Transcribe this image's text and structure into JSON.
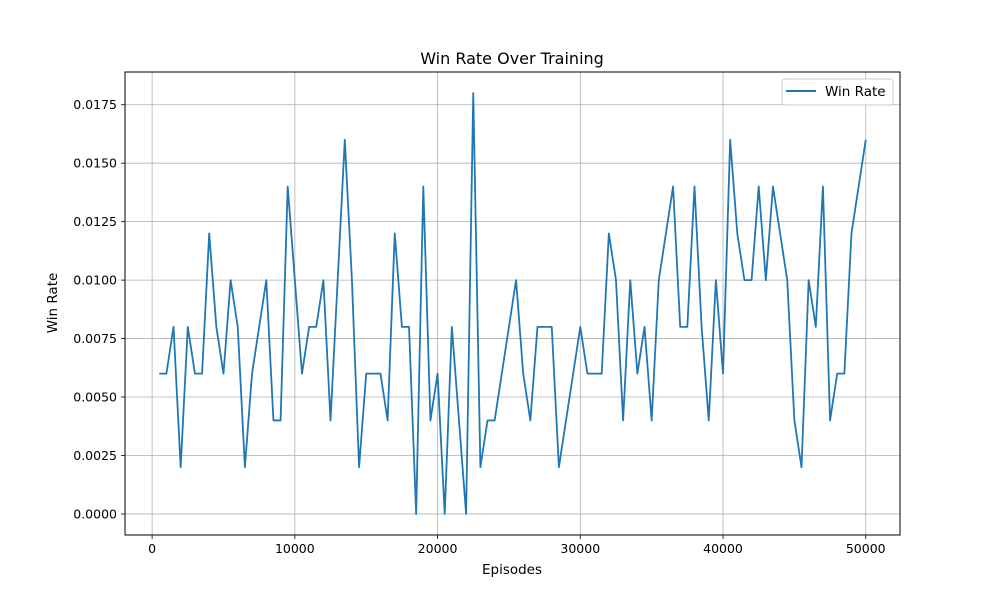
{
  "chart_data": {
    "type": "line",
    "title": "Win Rate Over Training",
    "xlabel": "Episodes",
    "ylabel": "Win Rate",
    "xlim": [
      -1900,
      52400
    ],
    "ylim": [
      -0.0009,
      0.0189
    ],
    "xticks": [
      0,
      10000,
      20000,
      30000,
      40000,
      50000
    ],
    "xtick_labels": [
      "0",
      "10000",
      "20000",
      "30000",
      "40000",
      "50000"
    ],
    "yticks": [
      0.0,
      0.0025,
      0.005,
      0.0075,
      0.01,
      0.0125,
      0.015,
      0.0175
    ],
    "ytick_labels": [
      "0.0000",
      "0.0025",
      "0.0050",
      "0.0075",
      "0.0100",
      "0.0125",
      "0.0150",
      "0.0175"
    ],
    "grid": true,
    "legend_position": "top-right",
    "series": [
      {
        "name": "Win Rate",
        "color": "#1f77b4",
        "x": [
          500,
          1000,
          1500,
          2000,
          2500,
          3000,
          3500,
          4000,
          4500,
          5000,
          5500,
          6000,
          6500,
          7000,
          7500,
          8000,
          8500,
          9000,
          9500,
          10000,
          10500,
          11000,
          11500,
          12000,
          12500,
          13000,
          13500,
          14000,
          14500,
          15000,
          15500,
          16000,
          16500,
          17000,
          17500,
          18000,
          18500,
          19000,
          19500,
          20000,
          20500,
          21000,
          21500,
          22000,
          22500,
          23000,
          23500,
          24000,
          24500,
          25000,
          25500,
          26000,
          26500,
          27000,
          27500,
          28000,
          28500,
          29000,
          29500,
          30000,
          30500,
          31000,
          31500,
          32000,
          32500,
          33000,
          33500,
          34000,
          34500,
          35000,
          35500,
          36000,
          36500,
          37000,
          37500,
          38000,
          38500,
          39000,
          39500,
          40000,
          40500,
          41000,
          41500,
          42000,
          42500,
          43000,
          43500,
          44000,
          44500,
          45000,
          45500,
          46000,
          46500,
          47000,
          47500,
          48000,
          48500,
          49000,
          49500,
          50000
        ],
        "y": [
          0.006,
          0.006,
          0.008,
          0.002,
          0.008,
          0.006,
          0.006,
          0.012,
          0.008,
          0.006,
          0.01,
          0.008,
          0.002,
          0.006,
          0.008,
          0.01,
          0.004,
          0.004,
          0.014,
          0.01,
          0.006,
          0.008,
          0.008,
          0.01,
          0.004,
          0.01,
          0.016,
          0.01,
          0.002,
          0.006,
          0.006,
          0.006,
          0.004,
          0.012,
          0.008,
          0.008,
          0.0,
          0.014,
          0.004,
          0.006,
          0.0,
          0.008,
          0.004,
          0.0,
          0.018,
          0.002,
          0.004,
          0.004,
          0.006,
          0.008,
          0.01,
          0.006,
          0.004,
          0.008,
          0.008,
          0.008,
          0.002,
          0.004,
          0.006,
          0.008,
          0.006,
          0.006,
          0.006,
          0.012,
          0.01,
          0.004,
          0.01,
          0.006,
          0.008,
          0.004,
          0.01,
          0.012,
          0.014,
          0.008,
          0.008,
          0.014,
          0.008,
          0.004,
          0.01,
          0.006,
          0.016,
          0.012,
          0.01,
          0.01,
          0.014,
          0.01,
          0.014,
          0.012,
          0.01,
          0.004,
          0.002,
          0.01,
          0.008,
          0.014,
          0.004,
          0.006,
          0.006,
          0.012,
          0.014,
          0.016
        ]
      }
    ]
  }
}
